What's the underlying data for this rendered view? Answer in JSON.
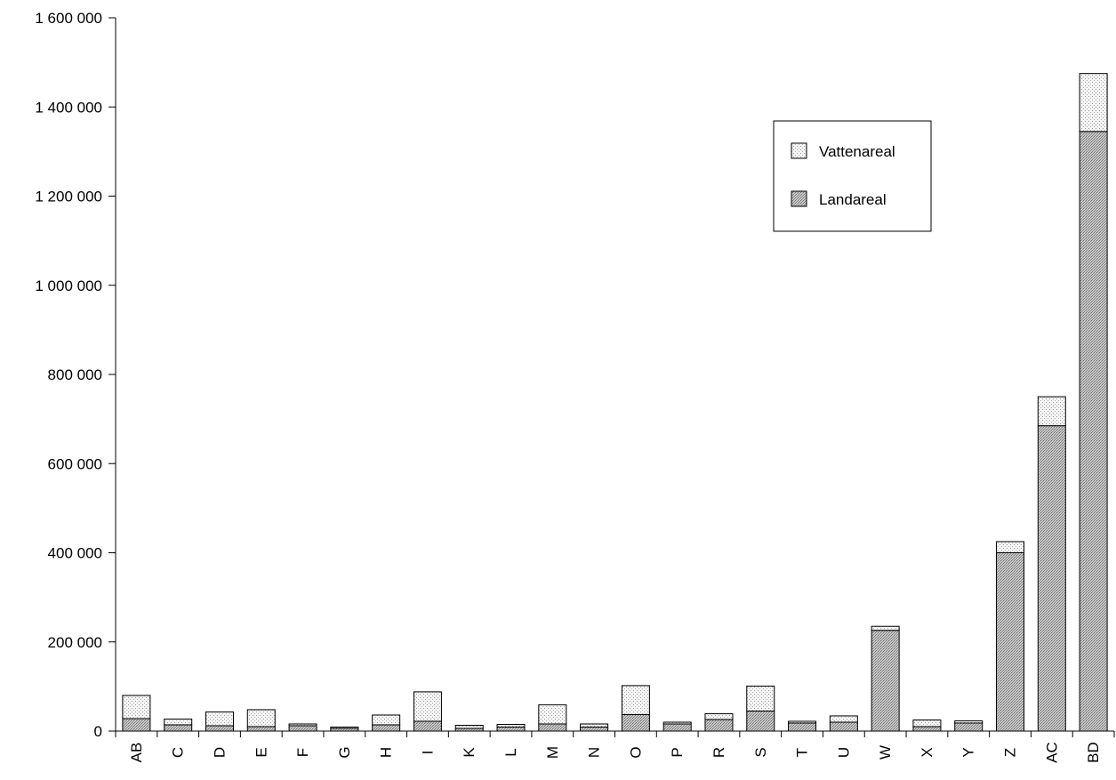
{
  "chart_data": {
    "type": "bar",
    "stacked": true,
    "categories": [
      "AB",
      "C",
      "D",
      "E",
      "F",
      "G",
      "H",
      "I",
      "K",
      "L",
      "M",
      "N",
      "O",
      "P",
      "R",
      "S",
      "T",
      "U",
      "W",
      "X",
      "Y",
      "Z",
      "AC",
      "BD"
    ],
    "series": [
      {
        "name": "Landareal",
        "values": [
          28000,
          14000,
          12000,
          10000,
          12000,
          6000,
          14000,
          22000,
          6000,
          9000,
          16000,
          9000,
          37000,
          16000,
          26000,
          45000,
          18000,
          20000,
          226000,
          10000,
          18000,
          400000,
          685000,
          1345000
        ]
      },
      {
        "name": "Vattenareal",
        "values": [
          52000,
          13000,
          31000,
          38000,
          4000,
          3000,
          22000,
          66000,
          7000,
          6000,
          43000,
          7000,
          65000,
          4000,
          13000,
          56000,
          4000,
          14000,
          9000,
          15000,
          5000,
          25000,
          65000,
          130000
        ]
      }
    ],
    "ylim": [
      0,
      1600000
    ],
    "yticks": [
      0,
      200000,
      400000,
      600000,
      800000,
      1000000,
      1200000,
      1400000,
      1600000
    ],
    "ytick_labels": [
      "0",
      "200 000",
      "400 000",
      "600 000",
      "800 000",
      "1 000 000",
      "1 200 000",
      "1 400 000",
      "1 600 000"
    ],
    "legend_position": "top-right",
    "legend": [
      {
        "label": "Vattenareal",
        "pattern": "dots"
      },
      {
        "label": "Landareal",
        "pattern": "crosshatch"
      }
    ],
    "grid": false
  }
}
